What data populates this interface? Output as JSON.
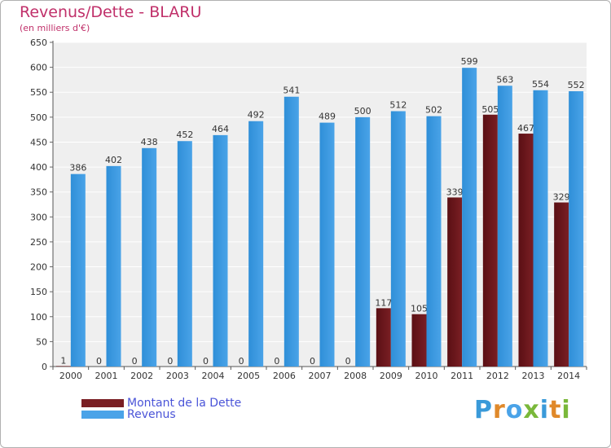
{
  "title": "Revenus/Dette - BLARU",
  "subtitle": "(en milliers d'€)",
  "brand": "Proxiti",
  "colors": {
    "debt": "#7a1f24",
    "revenue": "#4aa3e8",
    "title": "#c0306a",
    "legend_text": "#4a54d8",
    "plot_background": "#efefef",
    "grid": "#ffffff"
  },
  "chart_data": {
    "type": "bar",
    "title": "Revenus/Dette - BLARU",
    "subtitle": "(en milliers d'€)",
    "categories": [
      "2000",
      "2001",
      "2002",
      "2003",
      "2004",
      "2005",
      "2006",
      "2007",
      "2008",
      "2009",
      "2010",
      "2011",
      "2012",
      "2013",
      "2014"
    ],
    "series": [
      {
        "name": "Montant de la Dette",
        "values": [
          1,
          0,
          0,
          0,
          0,
          0,
          0,
          0,
          0,
          117,
          105,
          339,
          505,
          467,
          329
        ]
      },
      {
        "name": "Revenus",
        "values": [
          386,
          402,
          438,
          452,
          464,
          492,
          541,
          489,
          500,
          512,
          502,
          599,
          563,
          554,
          552
        ]
      }
    ],
    "yticks": [
      0,
      50,
      100,
      150,
      200,
      250,
      300,
      350,
      400,
      450,
      500,
      550,
      600,
      650
    ],
    "ylim": [
      0,
      650
    ],
    "grid": true,
    "legend_position": "bottom-left"
  }
}
